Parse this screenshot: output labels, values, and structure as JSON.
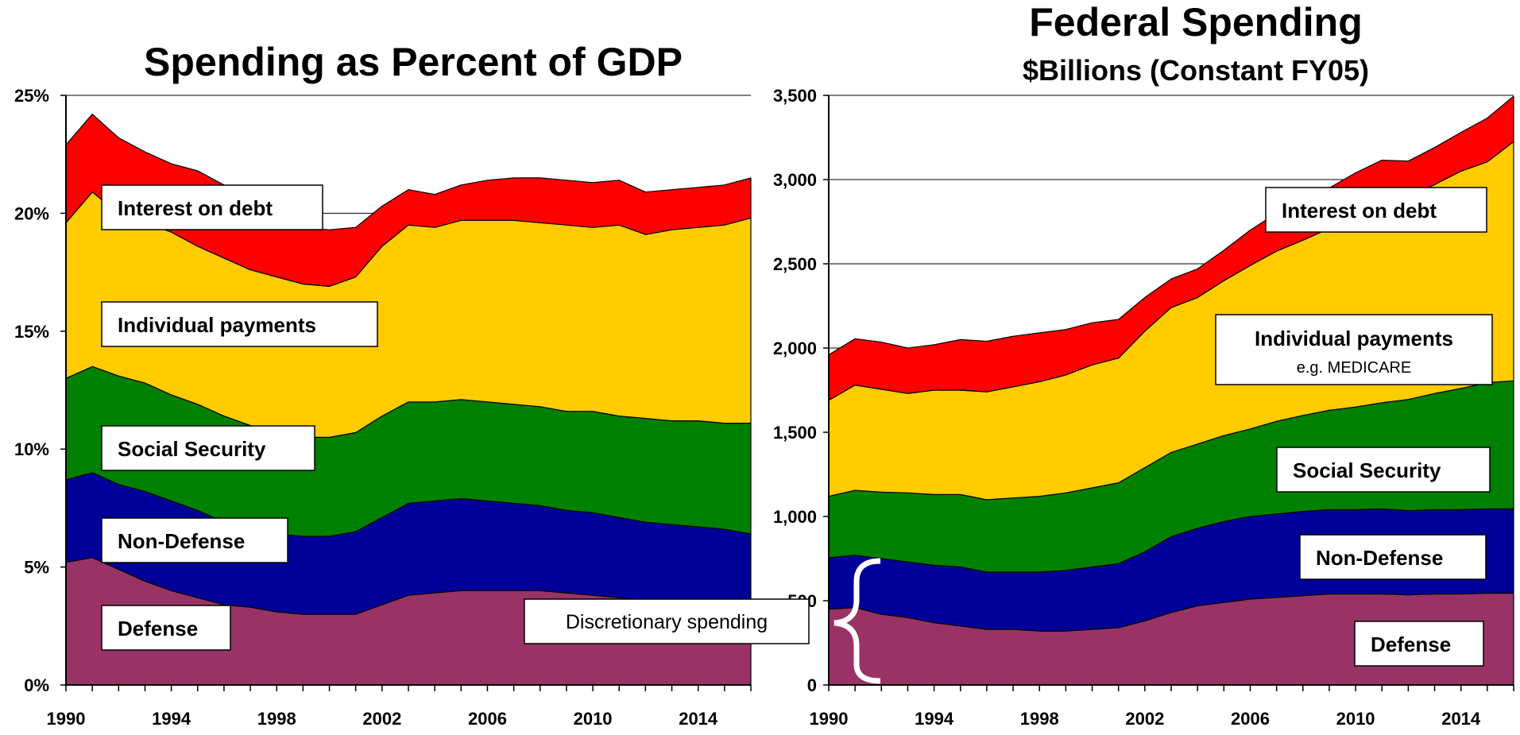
{
  "chart_data": [
    {
      "type": "area",
      "stacked": true,
      "title": "Spending as Percent of GDP",
      "x": [
        1990,
        1991,
        1992,
        1993,
        1994,
        1995,
        1996,
        1997,
        1998,
        1999,
        2000,
        2001,
        2002,
        2003,
        2004,
        2005,
        2006,
        2007,
        2008,
        2009,
        2010,
        2011,
        2012,
        2013,
        2014,
        2015,
        2016
      ],
      "x_ticks": [
        "1990",
        "1994",
        "1998",
        "2002",
        "2006",
        "2010",
        "2014"
      ],
      "y_ticks": [
        "0%",
        "5%",
        "10%",
        "15%",
        "20%",
        "25%"
      ],
      "ylim": [
        0,
        25
      ],
      "grid": "horizontal",
      "series": [
        {
          "name": "Defense",
          "color": "#993366",
          "values": [
            5.2,
            5.4,
            4.9,
            4.4,
            4.0,
            3.7,
            3.4,
            3.3,
            3.1,
            3.0,
            3.0,
            3.0,
            3.4,
            3.8,
            3.9,
            4.0,
            4.0,
            4.0,
            4.0,
            3.9,
            3.8,
            3.7,
            3.6,
            3.5,
            3.4,
            3.3,
            3.2
          ]
        },
        {
          "name": "Non-Defense",
          "color": "#000099",
          "values": [
            3.5,
            3.6,
            3.6,
            3.8,
            3.8,
            3.7,
            3.5,
            3.3,
            3.3,
            3.3,
            3.3,
            3.5,
            3.7,
            3.9,
            3.9,
            3.9,
            3.8,
            3.7,
            3.6,
            3.5,
            3.5,
            3.4,
            3.3,
            3.3,
            3.3,
            3.3,
            3.2
          ]
        },
        {
          "name": "Social Security",
          "color": "#008000",
          "values": [
            4.3,
            4.5,
            4.6,
            4.6,
            4.5,
            4.5,
            4.5,
            4.4,
            4.3,
            4.2,
            4.2,
            4.2,
            4.3,
            4.3,
            4.2,
            4.2,
            4.2,
            4.2,
            4.2,
            4.2,
            4.3,
            4.3,
            4.4,
            4.4,
            4.5,
            4.5,
            4.7
          ]
        },
        {
          "name": "Individual payments",
          "color": "#ffcc00",
          "values": [
            6.6,
            7.4,
            6.9,
            6.8,
            6.9,
            6.7,
            6.7,
            6.6,
            6.6,
            6.5,
            6.4,
            6.6,
            7.2,
            7.5,
            7.4,
            7.6,
            7.7,
            7.8,
            7.8,
            7.9,
            7.8,
            8.1,
            7.8,
            8.1,
            8.2,
            8.4,
            8.7
          ]
        },
        {
          "name": "Interest on debt",
          "color": "#ff0000",
          "values": [
            3.3,
            3.3,
            3.2,
            3.0,
            2.9,
            3.2,
            3.1,
            3.0,
            2.9,
            2.4,
            2.4,
            2.1,
            1.7,
            1.5,
            1.4,
            1.5,
            1.7,
            1.8,
            1.9,
            1.9,
            1.9,
            1.9,
            1.8,
            1.7,
            1.7,
            1.7,
            1.7
          ]
        }
      ],
      "labels": [
        "Interest on debt",
        "Individual payments",
        "Social Security",
        "Non-Defense",
        "Defense"
      ]
    },
    {
      "type": "area",
      "stacked": true,
      "title": "Federal Spending",
      "subtitle": "$Billions (Constant FY05)",
      "x": [
        1990,
        1991,
        1992,
        1993,
        1994,
        1995,
        1996,
        1997,
        1998,
        1999,
        2000,
        2001,
        2002,
        2003,
        2004,
        2005,
        2006,
        2007,
        2008,
        2009,
        2010,
        2011,
        2012,
        2013,
        2014,
        2015,
        2016
      ],
      "x_ticks": [
        "1990",
        "1994",
        "1998",
        "2002",
        "2006",
        "2010",
        "2014"
      ],
      "y_ticks": [
        "0",
        "500",
        "1,000",
        "1,500",
        "2,000",
        "2,500",
        "3,000",
        "3,500"
      ],
      "ylim": [
        0,
        3500
      ],
      "grid": "horizontal",
      "series": [
        {
          "name": "Defense",
          "color": "#993366",
          "values": [
            450,
            460,
            420,
            400,
            370,
            350,
            330,
            330,
            320,
            320,
            330,
            340,
            380,
            430,
            470,
            490,
            510,
            520,
            530,
            540,
            540,
            540,
            535,
            540,
            540,
            545,
            545
          ]
        },
        {
          "name": "Non-Defense",
          "color": "#000099",
          "values": [
            305,
            310,
            330,
            330,
            340,
            350,
            340,
            340,
            350,
            360,
            370,
            380,
            410,
            450,
            460,
            480,
            490,
            495,
            500,
            500,
            500,
            505,
            500,
            500,
            500,
            500,
            500
          ]
        },
        {
          "name": "Social Security",
          "color": "#008000",
          "values": [
            365,
            385,
            395,
            410,
            420,
            430,
            430,
            440,
            450,
            460,
            470,
            480,
            500,
            500,
            500,
            510,
            520,
            550,
            570,
            590,
            610,
            630,
            660,
            690,
            720,
            750,
            760
          ]
        },
        {
          "name": "Individual payments",
          "color": "#ffcc00",
          "values": [
            570,
            625,
            610,
            590,
            620,
            620,
            640,
            660,
            680,
            700,
            730,
            740,
            810,
            860,
            870,
            920,
            970,
            1010,
            1040,
            1080,
            1120,
            1150,
            1205,
            1240,
            1290,
            1310,
            1420
          ]
        },
        {
          "name": "Interest on debt",
          "color": "#ff0000",
          "values": [
            270,
            275,
            280,
            270,
            270,
            300,
            300,
            300,
            290,
            270,
            250,
            230,
            200,
            170,
            170,
            180,
            210,
            225,
            230,
            240,
            270,
            290,
            210,
            220,
            230,
            260,
            270
          ]
        }
      ],
      "labels": [
        "Interest on debt",
        "Individual payments",
        "Social Security",
        "Non-Defense",
        "Defense"
      ],
      "sublabels": [
        "e.g. MEDICARE"
      ]
    }
  ],
  "annotation": {
    "text": "Discretionary spending"
  }
}
